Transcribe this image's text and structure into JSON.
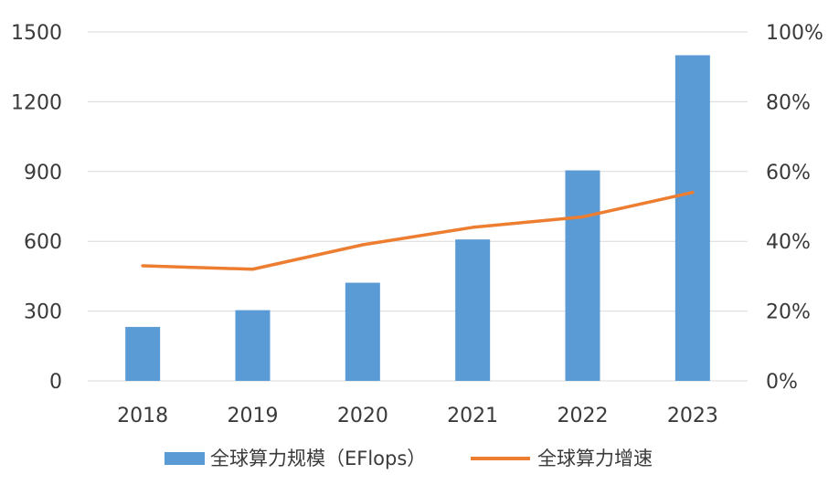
{
  "chart_data": {
    "type": "bar",
    "categories": [
      "2018",
      "2019",
      "2020",
      "2021",
      "2022",
      "2023"
    ],
    "series": [
      {
        "name": "全球算力规模（EFlops）",
        "type": "bar",
        "axis": "left",
        "color": "#5B9BD5",
        "values": [
          232,
          304,
          422,
          608,
          905,
          1400
        ]
      },
      {
        "name": "全球算力增速",
        "type": "line",
        "axis": "right",
        "color": "#ED7D31",
        "values": [
          33,
          32,
          39,
          44,
          47,
          54
        ]
      }
    ],
    "y_left": {
      "lim": [
        0,
        1500
      ],
      "ticks": [
        0,
        300,
        600,
        900,
        1200,
        1500
      ],
      "tick_labels": [
        "0",
        "300",
        "600",
        "900",
        "1200",
        "1500"
      ]
    },
    "y_right": {
      "lim": [
        0,
        100
      ],
      "ticks": [
        0,
        20,
        40,
        60,
        80,
        100
      ],
      "tick_labels": [
        "0%",
        "20%",
        "40%",
        "60%",
        "80%",
        "100%"
      ]
    },
    "grid": true,
    "legend": "bottom",
    "title": "",
    "xlabel": "",
    "ylabel": ""
  }
}
